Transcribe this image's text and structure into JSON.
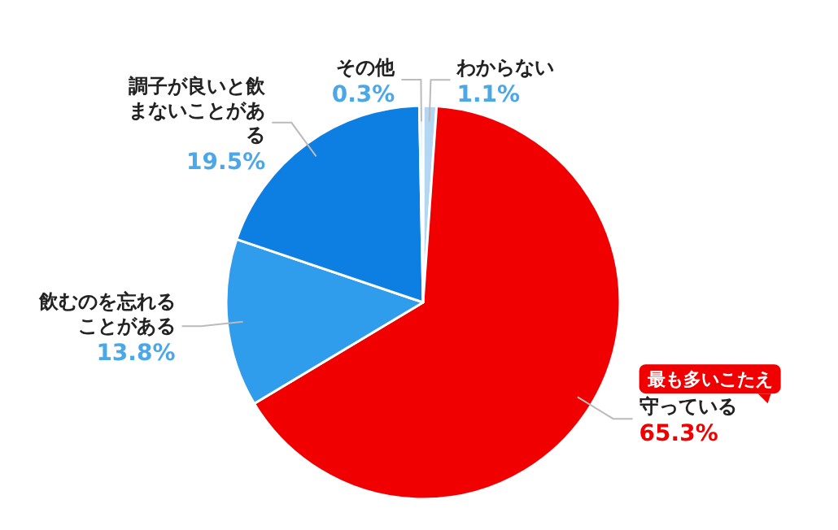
{
  "chart_data": {
    "type": "pie",
    "categories": [
      "わからない",
      "守っている",
      "飲むのを忘れることがある",
      "調子が良いと飲まないことがある",
      "その他"
    ],
    "values": [
      1.1,
      65.3,
      13.8,
      19.5,
      0.3
    ],
    "value_labels": [
      "1.1%",
      "65.3%",
      "13.8%",
      "19.5%",
      "0.3%"
    ],
    "colors": [
      "#b3d6f2",
      "#f00000",
      "#2f9cec",
      "#0d7fe2",
      "#cfe3f5"
    ],
    "annotations": [
      "最も多いこたえ"
    ]
  }
}
